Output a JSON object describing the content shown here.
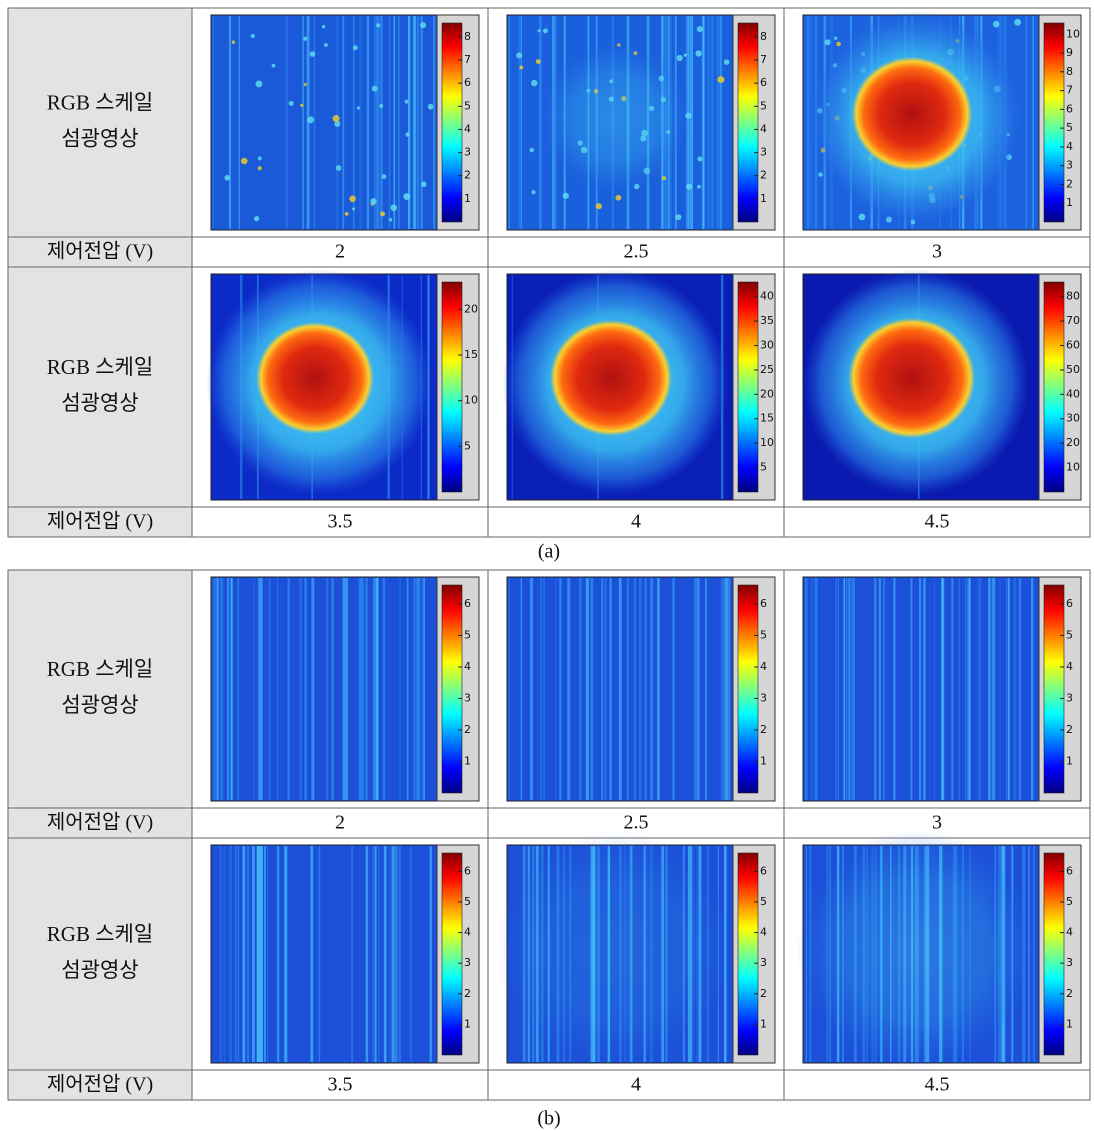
{
  "panels": [
    {
      "caption": "(a)",
      "rows": [
        {
          "label": [
            "RGB 스케일",
            "섬광영상"
          ],
          "voltage_label": "제어전압 (V)",
          "images": [
            {
              "voltage": 2,
              "colorbar": [
                1,
                2,
                3,
                4,
                5,
                6,
                7,
                8
              ]
            },
            {
              "voltage": 2.5,
              "colorbar": [
                1,
                2,
                3,
                4,
                5,
                6,
                7,
                8
              ]
            },
            {
              "voltage": 3,
              "colorbar": [
                1,
                2,
                3,
                4,
                5,
                6,
                7,
                8,
                9,
                10
              ]
            }
          ]
        },
        {
          "label": [
            "RGB 스케일",
            "섬광영상"
          ],
          "voltage_label": "제어전압 (V)",
          "images": [
            {
              "voltage": 3.5,
              "colorbar": [
                5,
                10,
                15,
                20
              ]
            },
            {
              "voltage": 4,
              "colorbar": [
                5,
                10,
                15,
                20,
                25,
                30,
                35,
                40
              ]
            },
            {
              "voltage": 4.5,
              "colorbar": [
                10,
                20,
                30,
                40,
                50,
                60,
                70,
                80
              ]
            }
          ]
        }
      ]
    },
    {
      "caption": "(b)",
      "rows": [
        {
          "label": [
            "RGB 스케일",
            "섬광영상"
          ],
          "voltage_label": "제어전압 (V)",
          "images": [
            {
              "voltage": 2,
              "colorbar": [
                1,
                2,
                3,
                4,
                5,
                6
              ]
            },
            {
              "voltage": 2.5,
              "colorbar": [
                1,
                2,
                3,
                4,
                5,
                6
              ]
            },
            {
              "voltage": 3,
              "colorbar": [
                1,
                2,
                3,
                4,
                5,
                6
              ]
            }
          ]
        },
        {
          "label": [
            "RGB 스케일",
            "섬광영상"
          ],
          "voltage_label": "제어전압 (V)",
          "images": [
            {
              "voltage": 3.5,
              "colorbar": [
                1,
                2,
                3,
                4,
                5,
                6
              ]
            },
            {
              "voltage": 4,
              "colorbar": [
                1,
                2,
                3,
                4,
                5,
                6
              ]
            },
            {
              "voltage": 4.5,
              "colorbar": [
                1,
                2,
                3,
                4,
                5,
                6
              ]
            }
          ]
        }
      ]
    }
  ]
}
